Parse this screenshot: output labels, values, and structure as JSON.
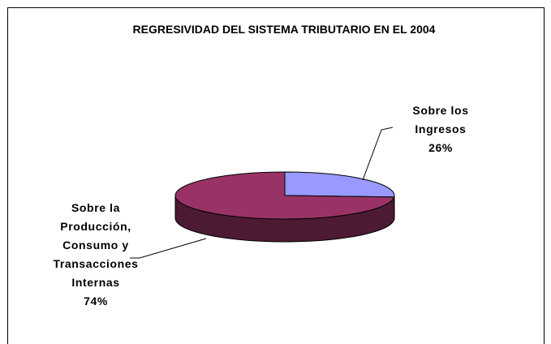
{
  "chart_data": {
    "type": "pie",
    "title": "REGRESIVIDAD DEL SISTEMA TRIBUTARIO EN EL 2004",
    "categories": [
      "Sobre los Ingresos",
      "Sobre la Producción, Consumo y Transacciones Internas"
    ],
    "values": [
      26,
      74
    ],
    "value_labels": [
      "26%",
      "74%"
    ],
    "colors": [
      "#9999ff",
      "#993366"
    ]
  }
}
